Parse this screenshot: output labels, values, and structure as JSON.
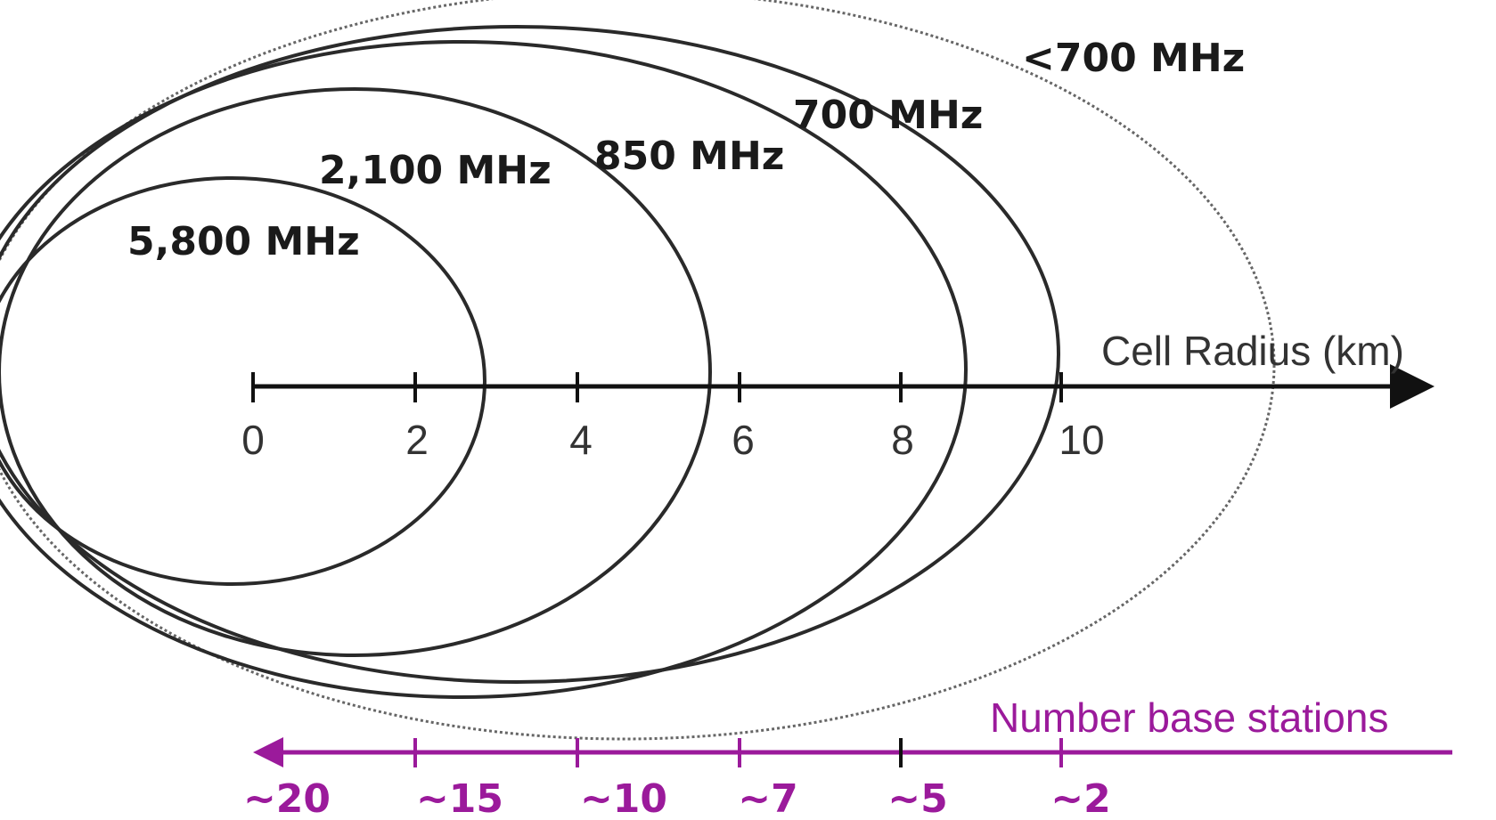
{
  "bands": [
    {
      "label": "5,800 MHz",
      "radius_km": 2.8
    },
    {
      "label": "2,100 MHz",
      "radius_km": 5.6
    },
    {
      "label": "850 MHz",
      "radius_km": 8.7
    },
    {
      "label": "700 MHz",
      "radius_km": 10.0
    },
    {
      "label": "<700 MHz",
      "radius_km": 12.6,
      "dotted": true
    }
  ],
  "radius_axis": {
    "title": "Cell Radius (km)",
    "ticks": [
      "0",
      "2",
      "4",
      "6",
      "8",
      "10"
    ]
  },
  "base_station_axis": {
    "title": "Number base stations",
    "ticks": [
      "~20",
      "~15",
      "~10",
      "~7",
      "~5",
      "~2"
    ]
  },
  "colors": {
    "ellipse": "#2a2a2a",
    "axis": "#111111",
    "base_station": "#9b1a9b"
  }
}
